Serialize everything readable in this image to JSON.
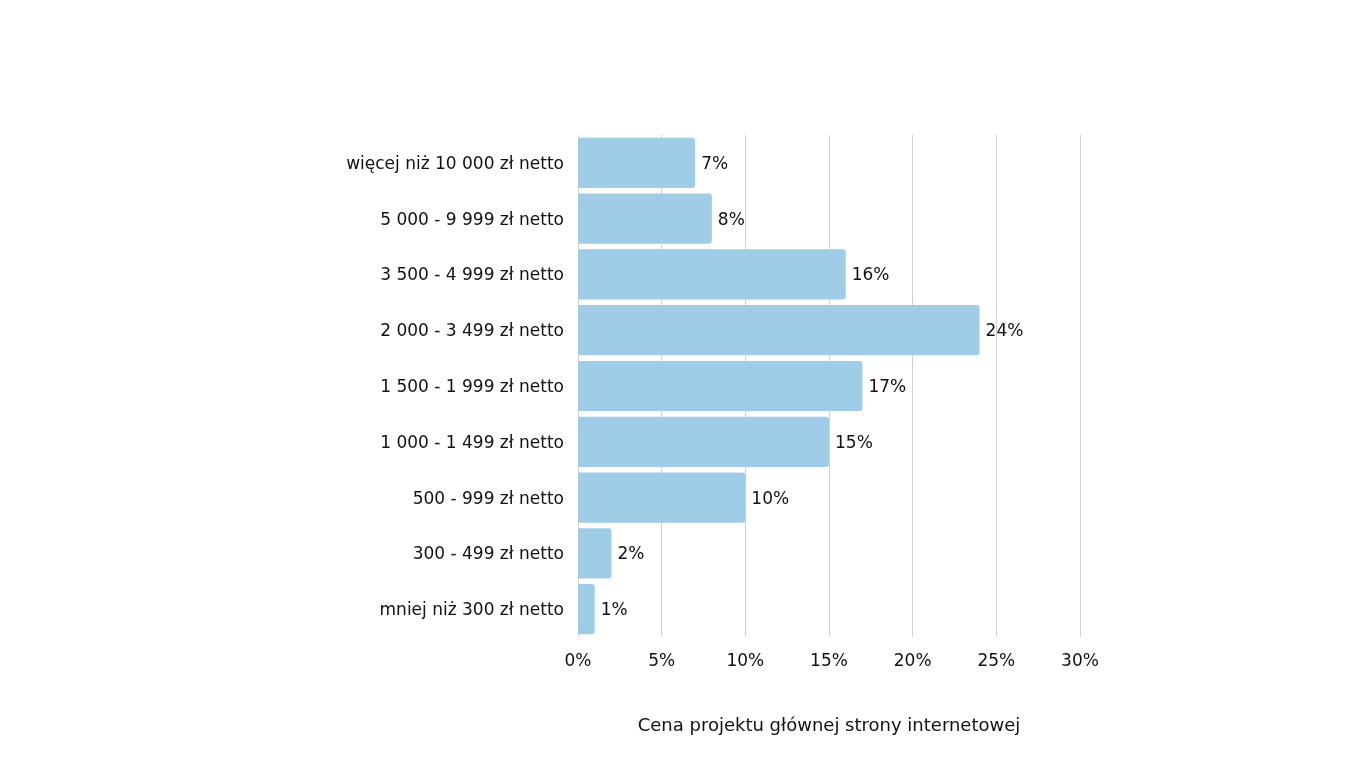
{
  "chart_data": {
    "type": "bar",
    "orientation": "horizontal",
    "xlabel": "Cena projektu głównej strony internetowej",
    "categories": [
      "więcej niż 10 000 zł netto",
      "5 000 - 9 999 zł netto",
      "3 500 - 4 999 zł netto",
      "2 000 - 3 499 zł netto",
      "1 500 - 1 999 zł netto",
      "1 000 - 1 499 zł netto",
      "500 - 999 zł netto",
      "300 - 499 zł netto",
      "mniej niż 300 zł netto"
    ],
    "values": [
      7,
      8,
      16,
      24,
      17,
      15,
      10,
      2,
      1
    ],
    "value_labels": [
      "7%",
      "8%",
      "16%",
      "24%",
      "17%",
      "15%",
      "10%",
      "2%",
      "1%"
    ],
    "color": "#9fcde8",
    "xlim": [
      0,
      30
    ],
    "xticks": [
      {
        "value": 0,
        "label": "0%"
      },
      {
        "value": 5,
        "label": "5%"
      },
      {
        "value": 10,
        "label": "10%"
      },
      {
        "value": 15,
        "label": "15%"
      },
      {
        "value": 20,
        "label": "20%"
      },
      {
        "value": 25,
        "label": "25%"
      },
      {
        "value": 30,
        "label": "30%"
      }
    ],
    "grid": "x"
  }
}
